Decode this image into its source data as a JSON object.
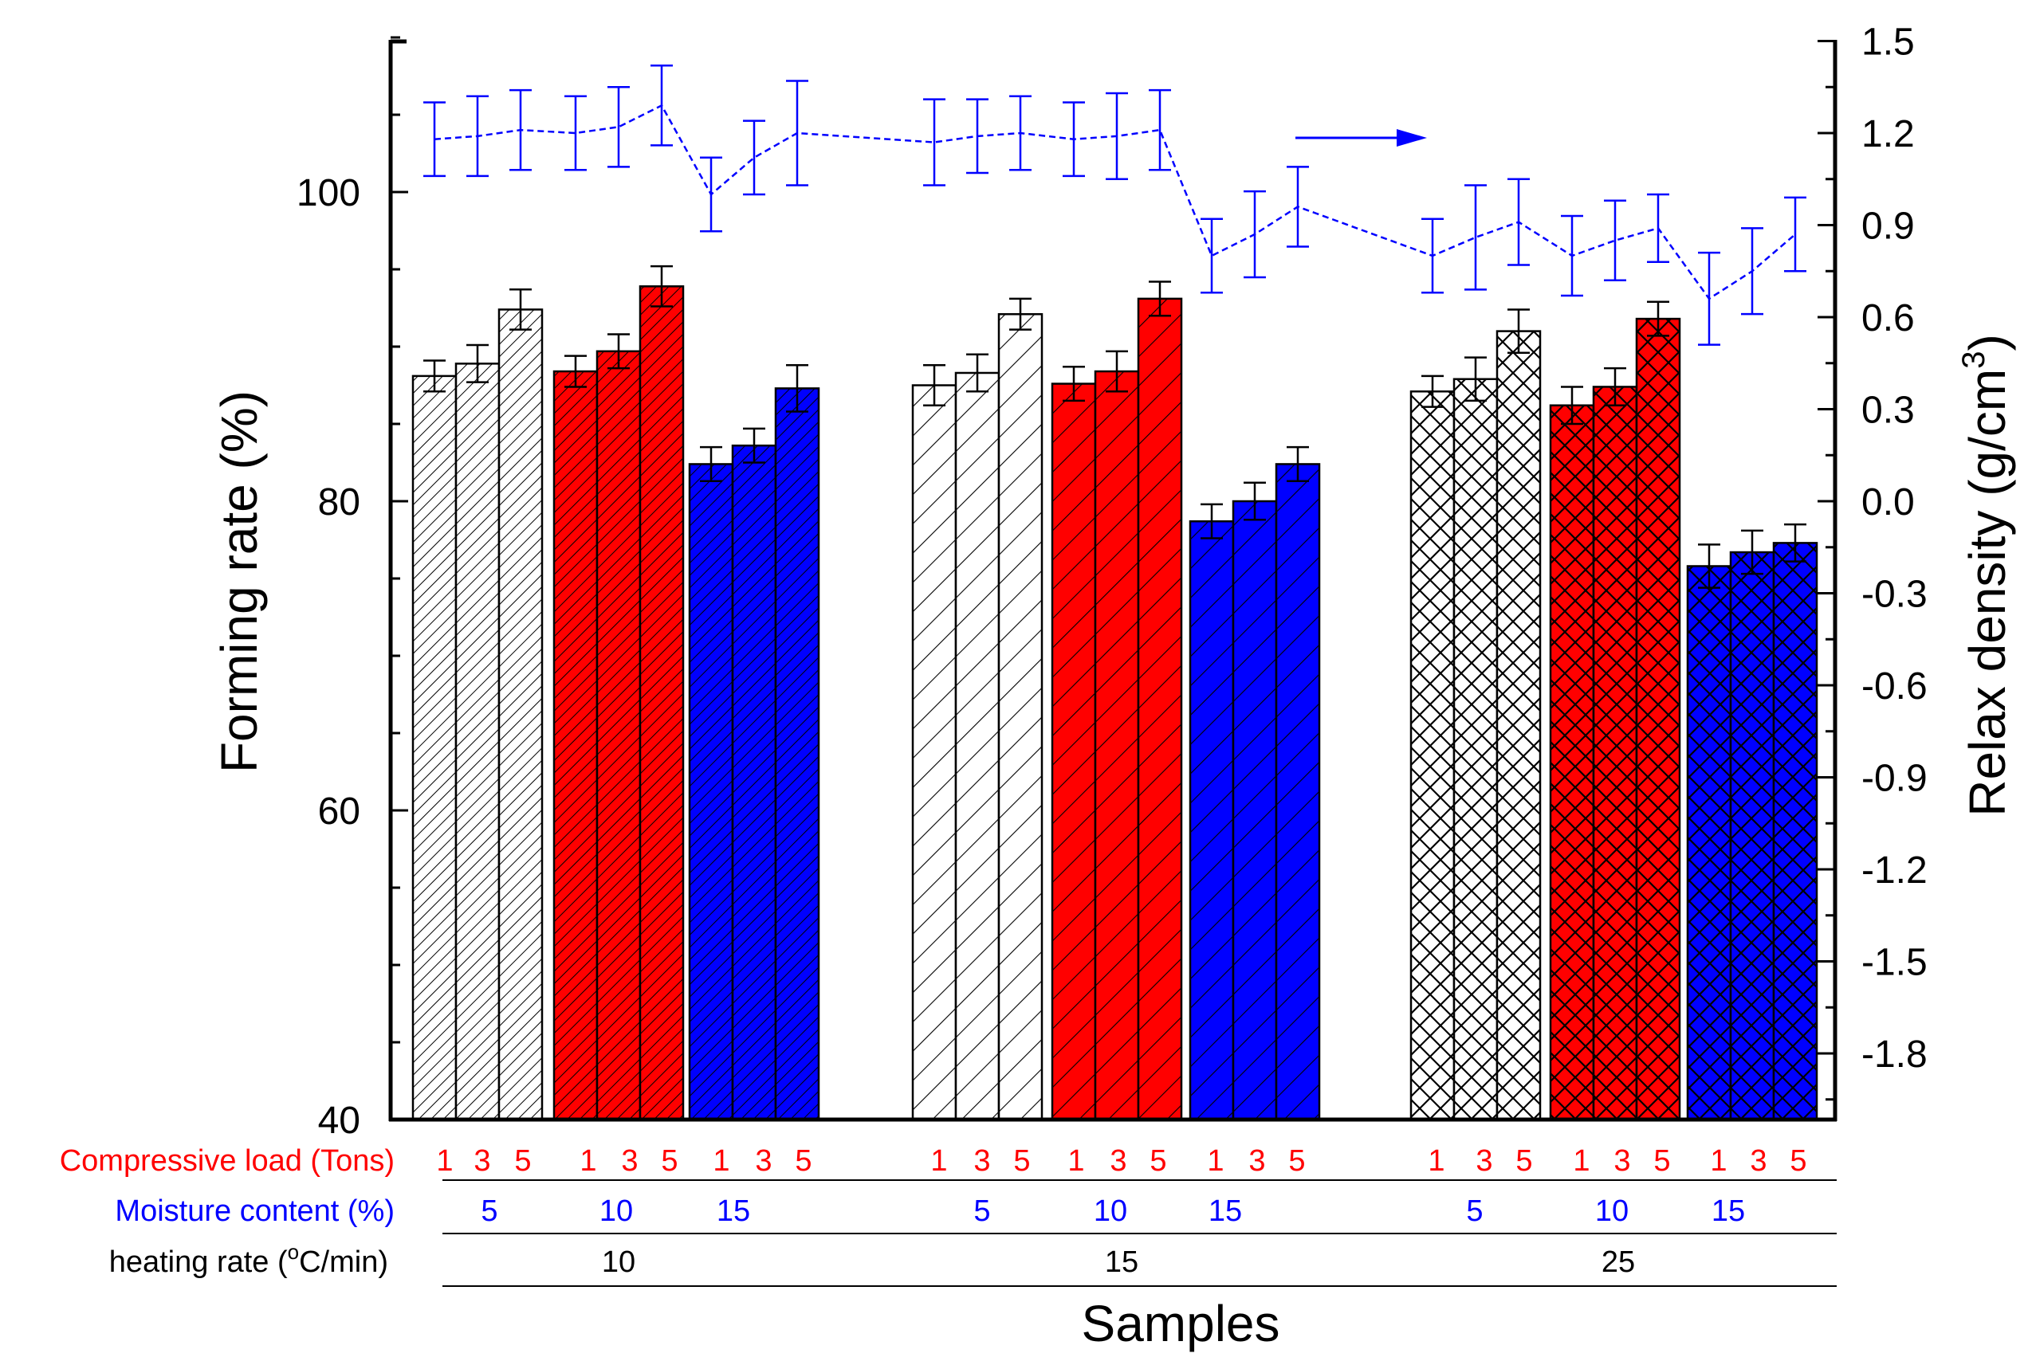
{
  "chart_data": {
    "type": "bar",
    "xlabel": "Samples",
    "left_axis": {
      "label": "Forming rate (%)",
      "range": [
        40,
        110
      ],
      "ticks": [
        "40",
        "60",
        "80",
        "100"
      ]
    },
    "right_axis": {
      "label_main": "Relax density (g/cm",
      "label_sup": "3",
      "label_tail": ")",
      "range": [
        -2.0,
        1.5
      ],
      "ticks": [
        "1.5",
        "1.2",
        "0.9",
        "0.6",
        "0.3",
        "0.0",
        "-0.3",
        "-0.6",
        "-0.9",
        "-1.2",
        "-1.5",
        "-1.8"
      ]
    },
    "row_labels": {
      "load": "Compressive load (Tons)",
      "moisture": "Moisture content (%)",
      "heating_main": "heating rate (",
      "heating_sup": "o",
      "heating_tail": "C/min)"
    },
    "load_levels": [
      "1",
      "3",
      "5"
    ],
    "moisture_levels": [
      "5",
      "10",
      "15"
    ],
    "heating_rates": [
      "10",
      "15",
      "25"
    ],
    "colors": {
      "moisture_5": "#ffffff",
      "moisture_10": "#ff0000",
      "moisture_15": "#0000ff",
      "load_text": "#ff0000",
      "moisture_text": "#0000ff",
      "density_line": "#0000ff"
    },
    "forming_rate": [
      {
        "heating_rate": "10",
        "moisture": "5",
        "values": [
          88.1,
          88.9,
          92.4
        ],
        "errors": [
          1.0,
          1.2,
          1.3
        ]
      },
      {
        "heating_rate": "10",
        "moisture": "10",
        "values": [
          88.4,
          89.7,
          93.9
        ],
        "errors": [
          1.0,
          1.1,
          1.3
        ]
      },
      {
        "heating_rate": "10",
        "moisture": "15",
        "values": [
          82.4,
          83.6,
          87.3
        ],
        "errors": [
          1.1,
          1.1,
          1.5
        ]
      },
      {
        "heating_rate": "15",
        "moisture": "5",
        "values": [
          87.5,
          88.3,
          92.1
        ],
        "errors": [
          1.3,
          1.2,
          1.0
        ]
      },
      {
        "heating_rate": "15",
        "moisture": "10",
        "values": [
          87.6,
          88.4,
          93.1
        ],
        "errors": [
          1.1,
          1.3,
          1.1
        ]
      },
      {
        "heating_rate": "15",
        "moisture": "15",
        "values": [
          78.7,
          80.0,
          82.4
        ],
        "errors": [
          1.1,
          1.2,
          1.1
        ]
      },
      {
        "heating_rate": "25",
        "moisture": "5",
        "values": [
          87.1,
          87.9,
          91.0
        ],
        "errors": [
          1.0,
          1.4,
          1.4
        ]
      },
      {
        "heating_rate": "25",
        "moisture": "10",
        "values": [
          86.2,
          87.4,
          91.8
        ],
        "errors": [
          1.2,
          1.2,
          1.1
        ]
      },
      {
        "heating_rate": "25",
        "moisture": "15",
        "values": [
          75.8,
          76.7,
          77.3
        ],
        "errors": [
          1.4,
          1.4,
          1.2
        ]
      }
    ],
    "relax_density": {
      "values": [
        1.18,
        1.19,
        1.21,
        1.2,
        1.22,
        1.29,
        1.0,
        1.12,
        1.2,
        1.17,
        1.19,
        1.2,
        1.18,
        1.19,
        1.21,
        0.8,
        0.87,
        0.96,
        0.8,
        0.86,
        0.91,
        0.8,
        0.85,
        0.89,
        0.66,
        0.75,
        0.87
      ],
      "errors": [
        0.12,
        0.13,
        0.13,
        0.12,
        0.13,
        0.13,
        0.12,
        0.12,
        0.17,
        0.14,
        0.12,
        0.12,
        0.12,
        0.14,
        0.13,
        0.12,
        0.14,
        0.13,
        0.12,
        0.17,
        0.14,
        0.13,
        0.13,
        0.11,
        0.15,
        0.14,
        0.12
      ]
    }
  }
}
